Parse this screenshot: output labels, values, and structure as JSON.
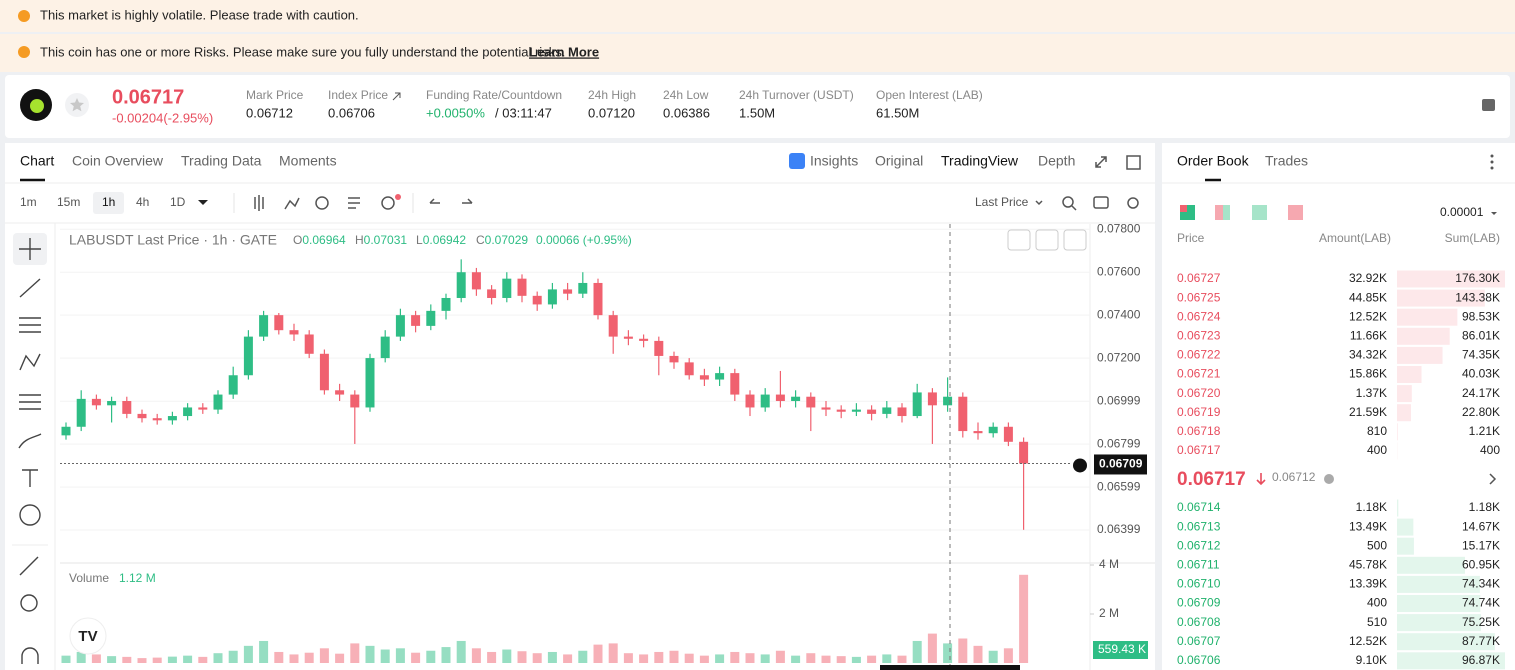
{
  "banners": [
    "This market is highly volatile. Please trade with caution.",
    "This coin has one or more Risks. Please make sure you fully understand the potential risks."
  ],
  "learn_more": "Learn More",
  "header": {
    "price": "0.06717",
    "change": "-0.00204(-2.95%)",
    "stats": [
      {
        "label": "Mark Price",
        "value": "0.06712"
      },
      {
        "label": "Index Price",
        "value": "0.06706"
      },
      {
        "label": "Funding Rate/Countdown",
        "value": "+0.0050%",
        "countdown": "/ 03:11:47"
      },
      {
        "label": "24h High",
        "value": "0.07120"
      },
      {
        "label": "24h Low",
        "value": "0.06386"
      },
      {
        "label": "24h Turnover (USDT)",
        "value": "1.50M"
      },
      {
        "label": "Open Interest (LAB)",
        "value": "61.50M"
      }
    ]
  },
  "tabs": [
    "Chart",
    "Coin Overview",
    "Trading Data",
    "Moments"
  ],
  "views": [
    "Insights",
    "Original",
    "TradingView",
    "Depth"
  ],
  "intervals": [
    "1m",
    "15m",
    "1h",
    "4h",
    "1D"
  ],
  "price_type": "Last Price",
  "chart_data": {
    "type": "candlestick",
    "title": "LABUSDT Last Price · 1h · GATE",
    "legend": [
      {
        "key": "O",
        "value": "0.06964"
      },
      {
        "key": "H",
        "value": "0.07031"
      },
      {
        "key": "L",
        "value": "0.06942"
      },
      {
        "key": "C",
        "value": "0.07029"
      }
    ],
    "legend_change": "0.00066 (+0.95%)",
    "up_color": "#2ebd85",
    "down_color": "#f0616f",
    "ylim": [
      0.0625,
      0.0782
    ],
    "yticks": [
      {
        "value": 0.078,
        "label": "0.07800"
      },
      {
        "value": 0.076,
        "label": "0.07600"
      },
      {
        "value": 0.074,
        "label": "0.07400"
      },
      {
        "value": 0.072,
        "label": "0.07200"
      },
      0.06999,
      0.06799,
      0.06599,
      0.06399
    ],
    "candles": [
      [
        0.0684,
        0.069,
        0.0682,
        0.0688
      ],
      [
        0.0688,
        0.0705,
        0.0686,
        0.0701
      ],
      [
        0.0701,
        0.0703,
        0.0696,
        0.0698
      ],
      [
        0.0698,
        0.0702,
        0.069,
        0.07
      ],
      [
        0.07,
        0.0702,
        0.0692,
        0.0694
      ],
      [
        0.0694,
        0.0696,
        0.069,
        0.0692
      ],
      [
        0.0692,
        0.0694,
        0.0689,
        0.0691
      ],
      [
        0.0691,
        0.0695,
        0.0689,
        0.0693
      ],
      [
        0.0693,
        0.0699,
        0.0691,
        0.0697
      ],
      [
        0.0697,
        0.0699,
        0.0694,
        0.0696
      ],
      [
        0.0696,
        0.0705,
        0.0694,
        0.0703
      ],
      [
        0.0703,
        0.0716,
        0.0701,
        0.0712
      ],
      [
        0.0712,
        0.0733,
        0.071,
        0.073
      ],
      [
        0.073,
        0.0742,
        0.0728,
        0.074
      ],
      [
        0.074,
        0.0741,
        0.0731,
        0.0733
      ],
      [
        0.0733,
        0.0736,
        0.0728,
        0.0731
      ],
      [
        0.0731,
        0.0733,
        0.072,
        0.0722
      ],
      [
        0.0722,
        0.0724,
        0.0703,
        0.0705
      ],
      [
        0.0705,
        0.0708,
        0.07,
        0.0703
      ],
      [
        0.0703,
        0.0705,
        0.068,
        0.0697
      ],
      [
        0.0697,
        0.0722,
        0.0695,
        0.072
      ],
      [
        0.072,
        0.0733,
        0.0718,
        0.073
      ],
      [
        0.073,
        0.0743,
        0.0728,
        0.074
      ],
      [
        0.074,
        0.0742,
        0.0732,
        0.0735
      ],
      [
        0.0735,
        0.0745,
        0.0733,
        0.0742
      ],
      [
        0.0742,
        0.075,
        0.0738,
        0.0748
      ],
      [
        0.0748,
        0.0766,
        0.0746,
        0.076
      ],
      [
        0.076,
        0.0762,
        0.0749,
        0.0752
      ],
      [
        0.0752,
        0.0754,
        0.0745,
        0.0748
      ],
      [
        0.0748,
        0.076,
        0.0746,
        0.0757
      ],
      [
        0.0757,
        0.0759,
        0.0746,
        0.0749
      ],
      [
        0.0749,
        0.0751,
        0.0742,
        0.0745
      ],
      [
        0.0745,
        0.0755,
        0.0743,
        0.0752
      ],
      [
        0.0752,
        0.0755,
        0.0747,
        0.075
      ],
      [
        0.075,
        0.076,
        0.0748,
        0.0755
      ],
      [
        0.0755,
        0.0757,
        0.0738,
        0.074
      ],
      [
        0.074,
        0.0742,
        0.0722,
        0.073
      ],
      [
        0.073,
        0.0733,
        0.0726,
        0.0729
      ],
      [
        0.0729,
        0.0731,
        0.0725,
        0.0728
      ],
      [
        0.0728,
        0.073,
        0.0712,
        0.0721
      ],
      [
        0.0721,
        0.0723,
        0.0715,
        0.0718
      ],
      [
        0.0718,
        0.072,
        0.071,
        0.0712
      ],
      [
        0.0712,
        0.0715,
        0.0707,
        0.071
      ],
      [
        0.071,
        0.0716,
        0.0707,
        0.0713
      ],
      [
        0.0713,
        0.0715,
        0.07,
        0.0703
      ],
      [
        0.0703,
        0.0705,
        0.0693,
        0.0697
      ],
      [
        0.0697,
        0.0706,
        0.0695,
        0.0703
      ],
      [
        0.0703,
        0.0714,
        0.0697,
        0.07
      ],
      [
        0.07,
        0.0705,
        0.0697,
        0.0702
      ],
      [
        0.0702,
        0.0704,
        0.0686,
        0.0697
      ],
      [
        0.0697,
        0.07,
        0.0693,
        0.0696
      ],
      [
        0.0696,
        0.0698,
        0.0692,
        0.0695
      ],
      [
        0.0695,
        0.0699,
        0.0693,
        0.0696
      ],
      [
        0.0696,
        0.0698,
        0.0691,
        0.0694
      ],
      [
        0.0694,
        0.07,
        0.0692,
        0.0697
      ],
      [
        0.0697,
        0.0699,
        0.069,
        0.0693
      ],
      [
        0.0693,
        0.0708,
        0.0692,
        0.0704
      ],
      [
        0.0704,
        0.0706,
        0.068,
        0.0698
      ],
      [
        0.0698,
        0.0711,
        0.0695,
        0.0702
      ],
      [
        0.0702,
        0.0704,
        0.0683,
        0.0686
      ],
      [
        0.0686,
        0.069,
        0.0682,
        0.0685
      ],
      [
        0.0685,
        0.069,
        0.0683,
        0.0688
      ],
      [
        0.0688,
        0.069,
        0.0679,
        0.0681
      ],
      [
        0.0681,
        0.0683,
        0.064,
        0.06709
      ]
    ],
    "volume_title": "Volume",
    "volume_value": "1.12 M",
    "vlim": [
      0,
      4000000
    ],
    "vticks": [
      {
        "value": 4000000,
        "label": "4 M"
      },
      {
        "value": 2000000,
        "label": "2 M"
      }
    ],
    "volumes": [
      300000,
      450000,
      350000,
      280000,
      250000,
      200000,
      220000,
      260000,
      300000,
      250000,
      400000,
      500000,
      700000,
      900000,
      450000,
      350000,
      420000,
      600000,
      380000,
      800000,
      700000,
      550000,
      600000,
      420000,
      500000,
      650000,
      900000,
      600000,
      450000,
      550000,
      480000,
      400000,
      450000,
      350000,
      500000,
      750000,
      800000,
      400000,
      350000,
      450000,
      500000,
      380000,
      300000,
      350000,
      450000,
      400000,
      350000,
      500000,
      300000,
      400000,
      300000,
      280000,
      250000,
      300000,
      350000,
      300000,
      900000,
      1200000,
      800000,
      1000000,
      700000,
      500000,
      600000,
      3600000
    ],
    "current_volume": {
      "value": 559430,
      "label": "559.43 K"
    }
  },
  "order_book": {
    "tabs": [
      "Order Book",
      "Trades"
    ],
    "precision": "0.00001",
    "headers": [
      "Price",
      "Amount(LAB)",
      "Sum(LAB)"
    ],
    "asks": [
      [
        "0.06727",
        "32.92K",
        {
          "value": 176300,
          "label": "176.30K"
        }
      ],
      [
        "0.06725",
        "44.85K",
        {
          "value": 143380,
          "label": "143.38K"
        }
      ],
      [
        "0.06724",
        "12.52K",
        {
          "value": 98530,
          "label": "98.53K"
        }
      ],
      [
        "0.06723",
        "11.66K",
        {
          "value": 86010,
          "label": "86.01K"
        }
      ],
      [
        "0.06722",
        "34.32K",
        {
          "value": 74350,
          "label": "74.35K"
        }
      ],
      [
        "0.06721",
        "15.86K",
        {
          "value": 40030,
          "label": "40.03K"
        }
      ],
      [
        "0.06720",
        "1.37K",
        {
          "value": 24170,
          "label": "24.17K"
        }
      ],
      [
        "0.06719",
        "21.59K",
        {
          "value": 22800,
          "label": "22.80K"
        }
      ],
      [
        "0.06718",
        "810",
        {
          "value": 1210,
          "label": "1.21K"
        }
      ],
      [
        "0.06717",
        "400",
        400
      ]
    ],
    "mid_price": "0.06717",
    "mid_mark": "0.06712",
    "bids": [
      [
        "0.06714",
        "1.18K",
        {
          "value": 1180,
          "label": "1.18K"
        }
      ],
      [
        "0.06713",
        "13.49K",
        {
          "value": 14670,
          "label": "14.67K"
        }
      ],
      [
        "0.06712",
        "500",
        {
          "value": 15170,
          "label": "15.17K"
        }
      ],
      [
        "0.06711",
        "45.78K",
        {
          "value": 60950,
          "label": "60.95K"
        }
      ],
      [
        "0.06710",
        "13.39K",
        {
          "value": 74340,
          "label": "74.34K"
        }
      ],
      [
        "0.06709",
        "400",
        {
          "value": 74740,
          "label": "74.74K"
        }
      ],
      [
        "0.06708",
        "510",
        {
          "value": 75250,
          "label": "75.25K"
        }
      ],
      [
        "0.06707",
        "12.52K",
        {
          "value": 87770,
          "label": "87.77K"
        }
      ],
      [
        "0.06706",
        "9.10K",
        {
          "value": 96870,
          "label": "96.87K"
        }
      ]
    ]
  }
}
